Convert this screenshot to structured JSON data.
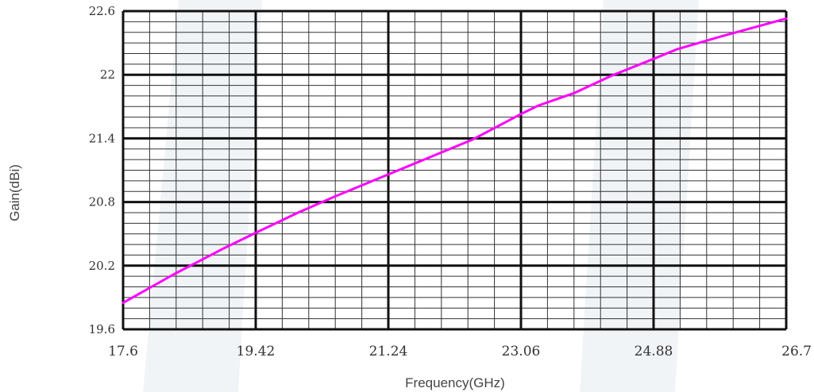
{
  "chart_data": {
    "type": "line",
    "title": "",
    "xlabel": "Frequency(GHz)",
    "ylabel": "Gain(dBi)",
    "xlim": [
      17.6,
      26.7
    ],
    "ylim": [
      19.6,
      22.6
    ],
    "x_ticks": [
      "17.6",
      "19.42",
      "21.24",
      "23.06",
      "24.88",
      "26.7"
    ],
    "y_ticks": [
      "19.6",
      "20.2",
      "20.8",
      "21.4",
      "22",
      "22.6"
    ],
    "x_minor_divisions": 25,
    "y_minor_divisions": 30,
    "grid": true,
    "series": [
      {
        "color": "#ff00ff",
        "x": [
          17.6,
          18.3,
          19.0,
          19.42,
          20.0,
          20.5,
          21.24,
          21.8,
          22.4,
          23.06,
          23.3,
          23.8,
          24.3,
          24.88,
          25.2,
          25.8,
          26.7
        ],
        "y": [
          19.85,
          20.12,
          20.37,
          20.51,
          20.7,
          20.85,
          21.06,
          21.22,
          21.39,
          21.63,
          21.71,
          21.83,
          21.99,
          22.15,
          22.24,
          22.36,
          22.53
        ]
      }
    ]
  }
}
